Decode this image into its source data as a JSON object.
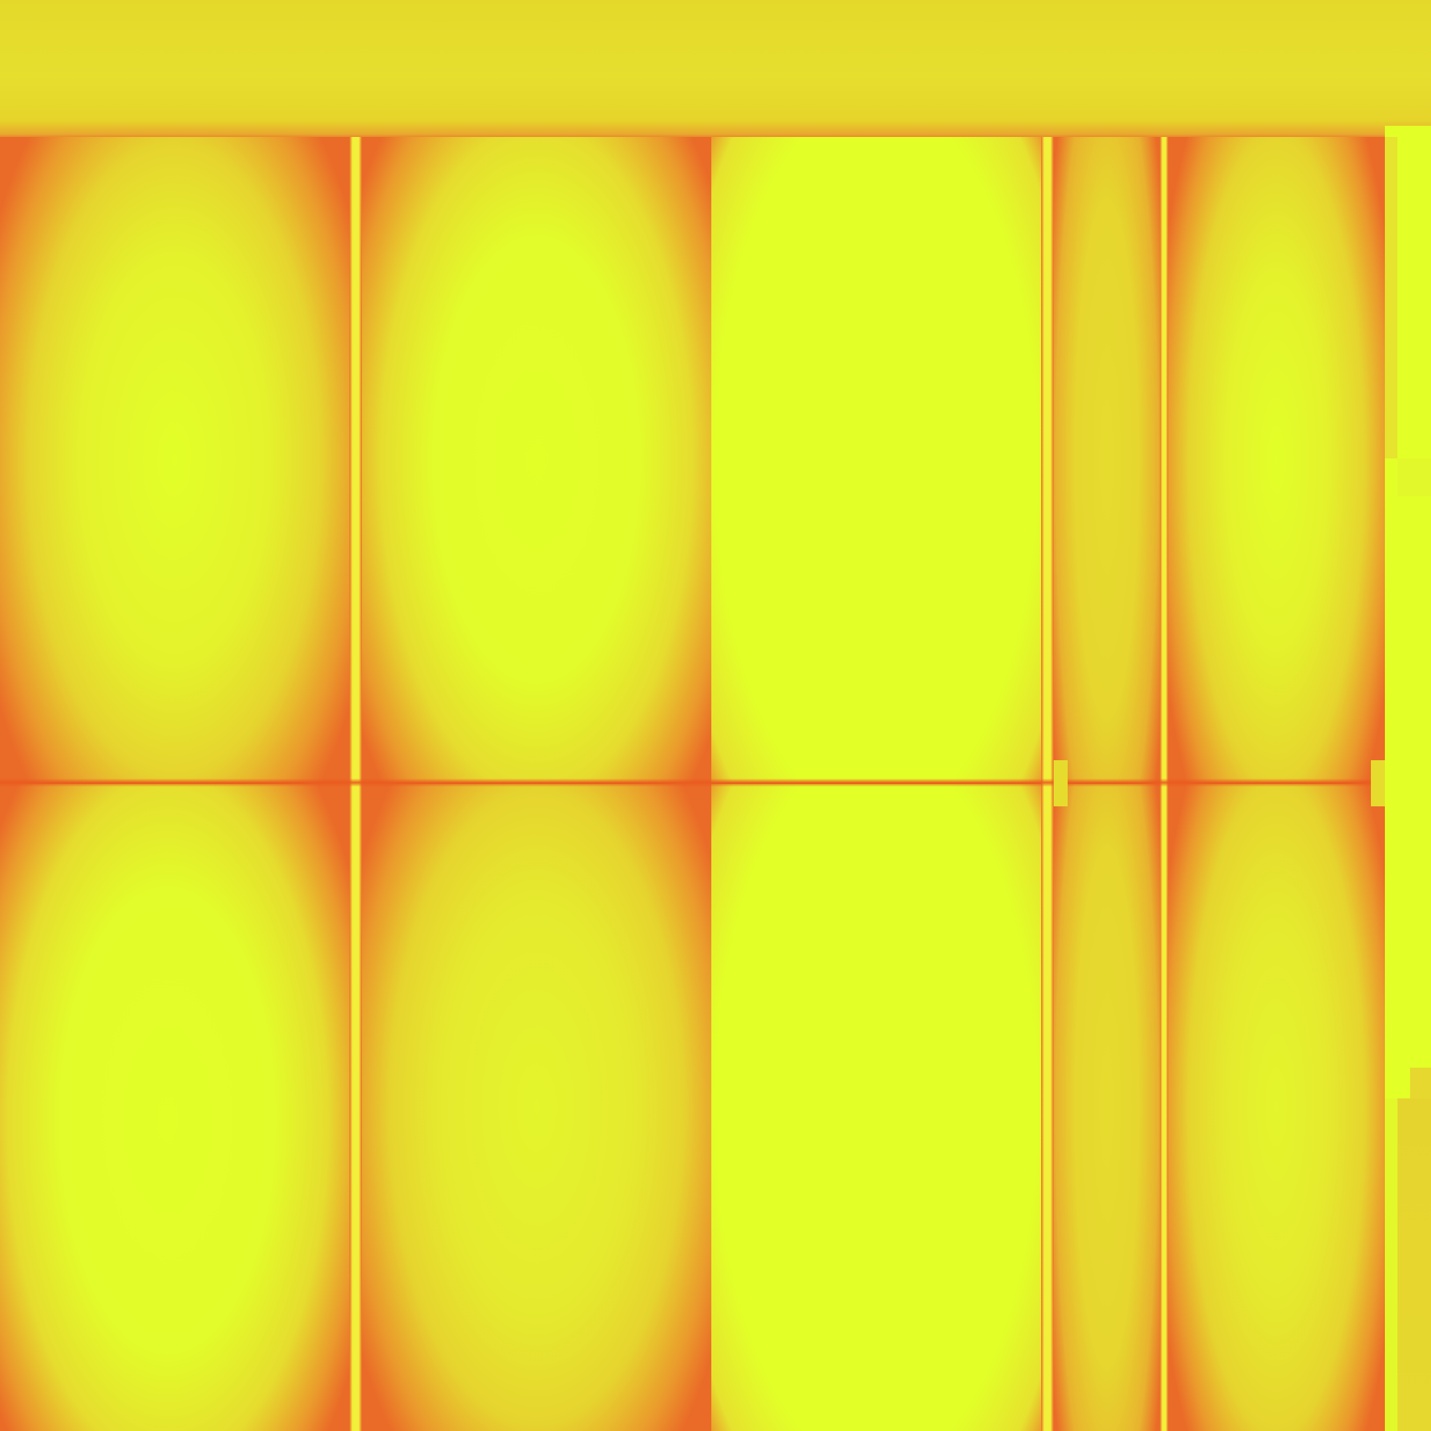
{
  "colors": {
    "base": "#e6df2c",
    "edge": "#ea6a28",
    "bright": "#e2ff28",
    "mid": "#e6ea2e",
    "divider": "#f2f03a"
  },
  "panels": [
    {
      "name": "panel-1-upper",
      "tone": "mid"
    },
    {
      "name": "panel-1-lower",
      "tone": "bright"
    },
    {
      "name": "panel-2-upper",
      "tone": "bright"
    },
    {
      "name": "panel-2-lower",
      "tone": "mid"
    },
    {
      "name": "panel-3-upper",
      "tone": "bright"
    },
    {
      "name": "panel-3-lower",
      "tone": "bright"
    },
    {
      "name": "panel-4-upper",
      "tone": "dim"
    },
    {
      "name": "panel-4-lower",
      "tone": "dim"
    },
    {
      "name": "panel-5-upper",
      "tone": "mid"
    },
    {
      "name": "panel-5-lower",
      "tone": "mid"
    }
  ]
}
